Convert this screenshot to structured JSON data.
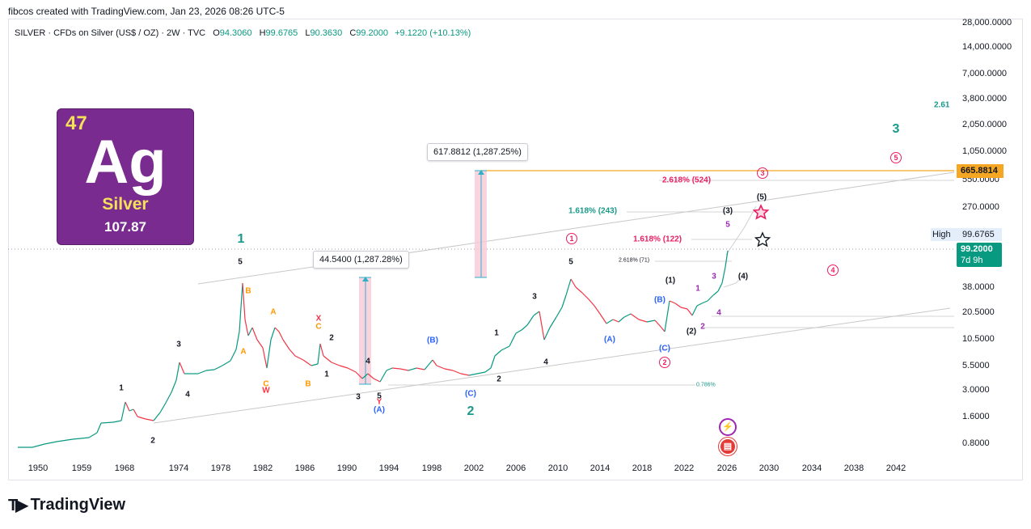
{
  "header": {
    "attribution": "fibcos created with TradingView.com, Jan 23, 2026 08:26 UTC-5"
  },
  "legend": {
    "symbol": "SILVER · CFDs on Silver (US$ / OZ) · 2W · TVC",
    "o_label": "O",
    "o_value": "94.3060",
    "h_label": "H",
    "h_value": "99.6765",
    "l_label": "L",
    "l_value": "90.3630",
    "c_label": "C",
    "c_value": "99.2000",
    "change": "+9.1220 (+10.13%)"
  },
  "element_card": {
    "number": "47",
    "symbol": "Ag",
    "name": "Silver",
    "mass": "107.87"
  },
  "price_axis": {
    "ticks": [
      "28,000.0000",
      "14,000.0000",
      "7,000.0000",
      "3,800.0000",
      "2,050.0000",
      "1,050.0000",
      "550.0000",
      "270.0000",
      "38.0000",
      "20.5000",
      "10.5000",
      "5.5000",
      "3.0000",
      "1.6000",
      "0.8000"
    ],
    "high_label": "High",
    "high_value": "99.6765",
    "last_price": "99.2000",
    "countdown": "7d 9h",
    "level_value": "665.8814"
  },
  "time_axis": {
    "ticks": [
      "1950",
      "1959",
      "1968",
      "1974",
      "1978",
      "1982",
      "1986",
      "1990",
      "1994",
      "1998",
      "2002",
      "2006",
      "2010",
      "2014",
      "2018",
      "2022",
      "2026",
      "2030",
      "2034",
      "2038",
      "2042"
    ]
  },
  "callouts": {
    "measure_1": "617.8812 (1,287.25%)",
    "measure_2": "44.5400 (1,287.28%)"
  },
  "fib_labels": {
    "f1": "2.618% (524)",
    "f2": "1.618% (243)",
    "f3": "1.618% (122)",
    "f4": "2.618% (71)",
    "f5": "0.786%",
    "f6": "2.61"
  },
  "wave_labels": {
    "big_1": "1",
    "big_2": "2",
    "big_3": "3",
    "w_5a": "5",
    "w_3a": "3",
    "w_4a": "4",
    "w_1a": "1",
    "w_2a": "2",
    "w_B1": "B",
    "w_A1": "A",
    "w_A2": "A",
    "w_C1": "C",
    "w_W": "W",
    "w_B2": "B",
    "w_X": "X",
    "w_C2": "C",
    "w_2b": "2",
    "w_1b": "1",
    "w_4b": "4",
    "w_3b": "3",
    "w_5b": "5",
    "w_Y": "Y",
    "w_Ap": "(A)",
    "w_Bp": "(B)",
    "w_Cp": "(C)",
    "w_1c": "1",
    "w_2c": "2",
    "w_3c": "3",
    "w_4c": "4",
    "w_5c": "5",
    "w_Ap2": "(A)",
    "w_Bp2": "(B)",
    "w_Cp2": "(C)",
    "w_p1": "(1)",
    "w_p2": "(2)",
    "w_p3": "(3)",
    "w_p4": "(4)",
    "w_p5": "(5)",
    "m1": "1",
    "m2": "2",
    "m3": "3",
    "m4": "4",
    "m5": "5",
    "c1": "1",
    "c2": "2",
    "c3": "3",
    "c4": "4",
    "c5": "5"
  },
  "branding": {
    "name": "TradingView"
  },
  "colors": {
    "up": "#089981",
    "down": "#f23645",
    "teal_wave": "#1a9a8a",
    "orange": "#ff9800",
    "blue_wave": "#2962ff",
    "magenta": "#e91e63",
    "purple": "#9c27b0",
    "level_line": "#f5a623"
  }
}
